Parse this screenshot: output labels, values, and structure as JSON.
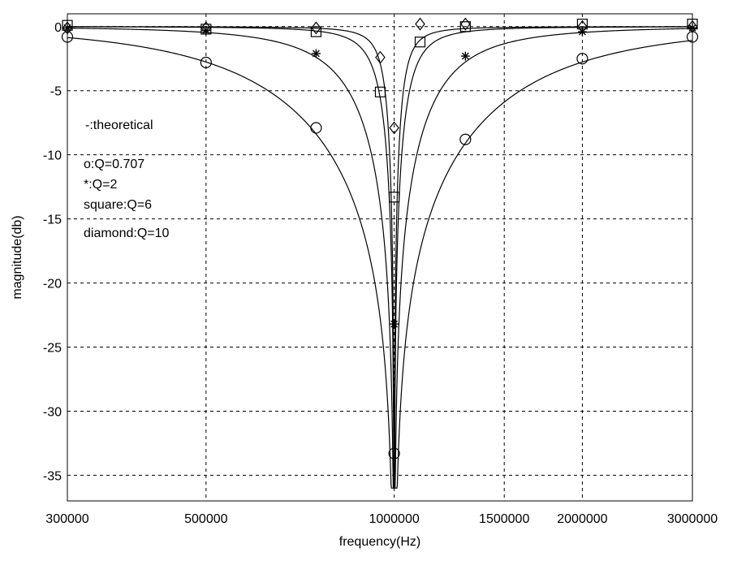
{
  "chart_data": {
    "type": "line",
    "xscale": "log",
    "xlabel": "frequency(Hz)",
    "ylabel": "magnitude(db)",
    "xlim": [
      300000,
      3000000
    ],
    "ylim": [
      -37,
      1
    ],
    "x_ticks": [
      300000,
      500000,
      1000000,
      1500000,
      2000000,
      3000000
    ],
    "x_tick_labels": [
      "300000",
      "500000",
      "1000000",
      "1500000",
      "2000000",
      "3000000"
    ],
    "y_ticks": [
      0,
      -5,
      -10,
      -15,
      -20,
      -25,
      -30,
      -35
    ],
    "y_tick_labels": [
      "0",
      "-5",
      "-10",
      "-15",
      "-20",
      "-25",
      "-30",
      "-35"
    ],
    "grid": true,
    "notch_frequency": 1000000,
    "annotations": [
      "-:theoretical",
      "o:Q=0.707",
      "*:Q=2",
      "square:Q=6",
      "diamond:Q=10"
    ],
    "series": [
      {
        "marker": "circle",
        "Q": 0.707,
        "x": [
          300000,
          500000,
          750000,
          1000000,
          1300000,
          2000000,
          3000000
        ],
        "y": [
          -0.8,
          -2.8,
          -7.9,
          -33.3,
          -8.8,
          -2.5,
          -0.8
        ]
      },
      {
        "marker": "star",
        "Q": 2,
        "x": [
          300000,
          500000,
          750000,
          1000000,
          1300000,
          2000000,
          3000000
        ],
        "y": [
          -0.1,
          -0.3,
          -2.1,
          -23.2,
          -2.3,
          -0.4,
          -0.1
        ]
      },
      {
        "marker": "square",
        "Q": 6,
        "x": [
          300000,
          500000,
          750000,
          950000,
          1000000,
          1100000,
          1300000,
          2000000,
          3000000
        ],
        "y": [
          0.1,
          -0.2,
          -0.4,
          -5.1,
          -13.3,
          -1.2,
          0.0,
          0.2,
          0.2
        ]
      },
      {
        "marker": "diamond",
        "Q": 10,
        "x": [
          300000,
          500000,
          750000,
          950000,
          1000000,
          1100000,
          1300000,
          2000000,
          3000000
        ],
        "y": [
          -0.1,
          -0.1,
          -0.1,
          -2.4,
          -7.9,
          0.2,
          0.2,
          0.0,
          0.0
        ]
      }
    ]
  }
}
